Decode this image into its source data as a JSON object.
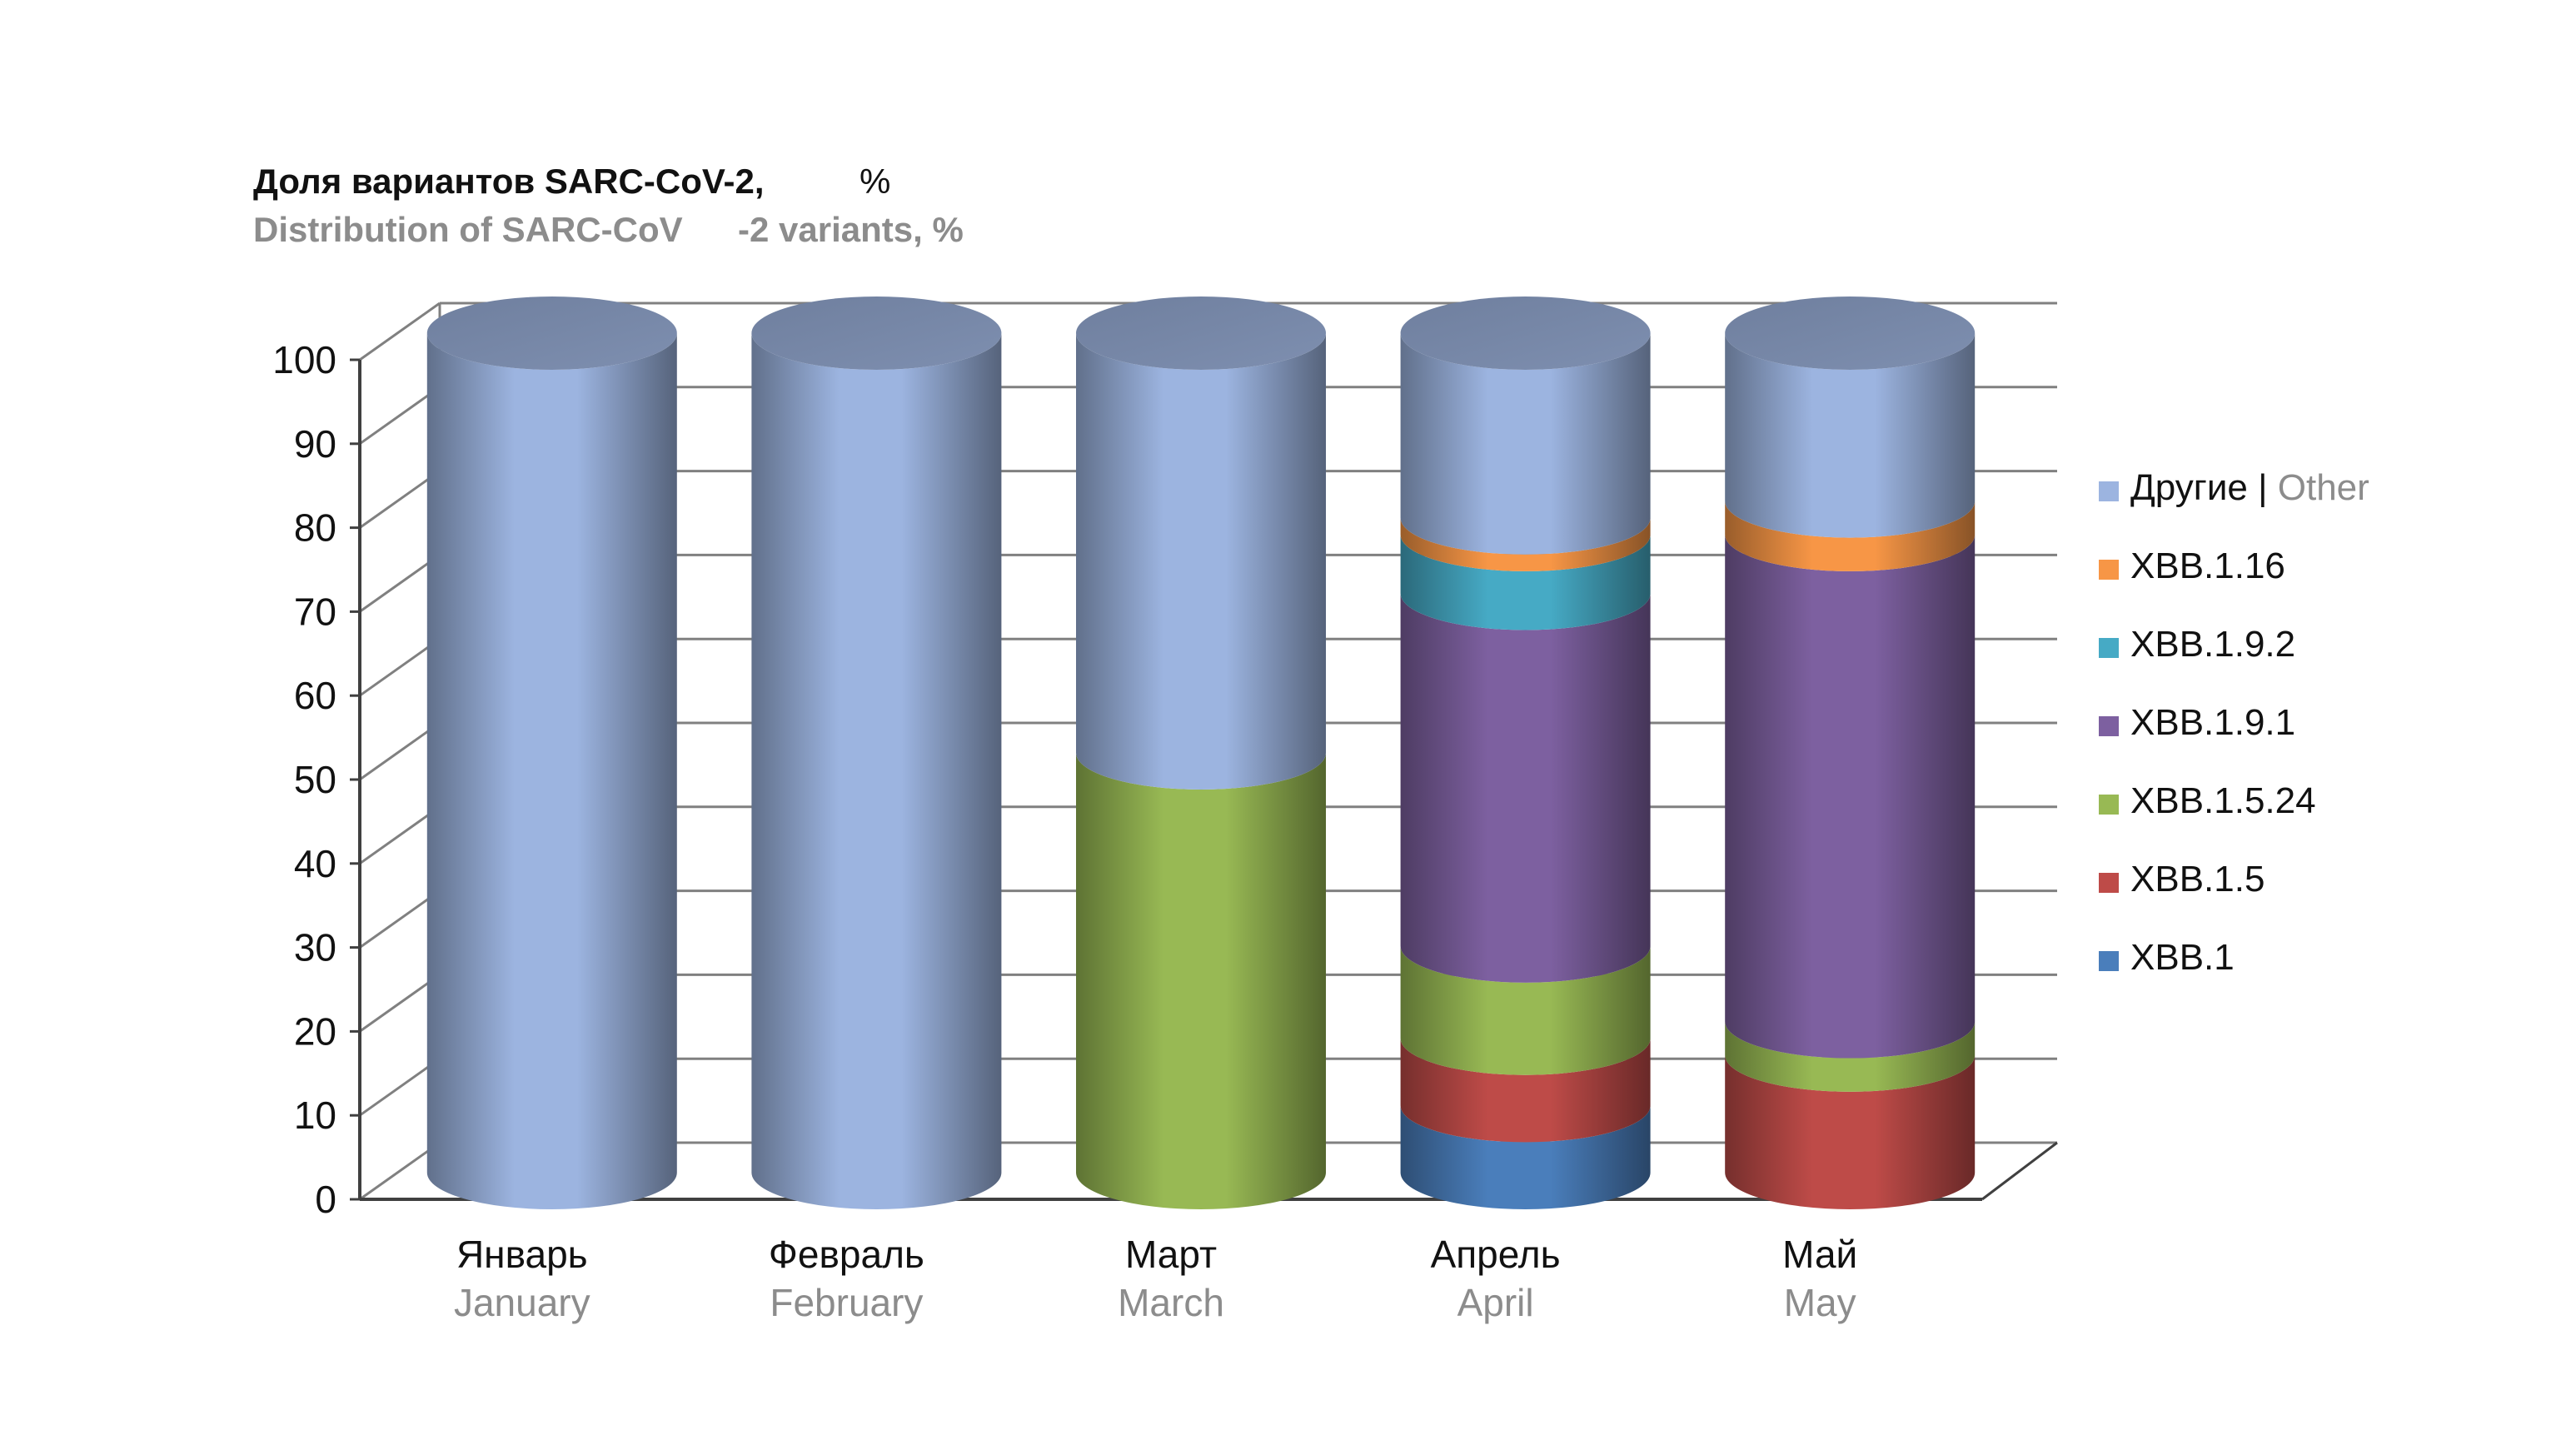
{
  "chart_data": {
    "type": "bar",
    "stacked": true,
    "style": "3d-cylinder",
    "title_ru": "Доля вариантов SARC-CoV-2,",
    "title_ru_unit": "%",
    "title_en": "Distribution of SARC-CoV",
    "title_en_suffix": "-2 variants, %",
    "categories": [
      {
        "ru": "Январь",
        "en": "January"
      },
      {
        "ru": "Февраль",
        "en": "February"
      },
      {
        "ru": "Март",
        "en": "March"
      },
      {
        "ru": "Апрель",
        "en": "April"
      },
      {
        "ru": "Май",
        "en": "May"
      }
    ],
    "yticks": [
      "0",
      "10",
      "20",
      "30",
      "40",
      "50",
      "60",
      "70",
      "80",
      "90",
      "100"
    ],
    "ylim": [
      0,
      100
    ],
    "grid": true,
    "legend_position": "right",
    "series": [
      {
        "name": "XBB.1",
        "color": "#4a7ebb",
        "values": [
          0,
          0,
          0,
          8,
          0
        ]
      },
      {
        "name": "XBB.1.5",
        "color": "#be4b48",
        "values": [
          0,
          0,
          0,
          8,
          14
        ]
      },
      {
        "name": "XBB.1.5.24",
        "color": "#98b954",
        "values": [
          0,
          0,
          50,
          11,
          4
        ]
      },
      {
        "name": "XBB.1.9.1",
        "color": "#7d60a0",
        "values": [
          0,
          0,
          0,
          42,
          58
        ]
      },
      {
        "name": "XBB.1.9.2",
        "color": "#46aac5",
        "values": [
          0,
          0,
          0,
          7,
          0
        ]
      },
      {
        "name": "XBB.1.16",
        "color": "#f79646",
        "values": [
          0,
          0,
          0,
          2,
          4
        ]
      },
      {
        "name": "Другие",
        "name_en": "Other",
        "color": "#9cb4e0",
        "values": [
          100,
          100,
          50,
          22,
          20
        ]
      }
    ],
    "legend_order": [
      "Другие",
      "XBB.1.16",
      "XBB.1.9.2",
      "XBB.1.9.1",
      "XBB.1.5.24",
      "XBB.1.5",
      "XBB.1"
    ],
    "legend_separator": "|"
  }
}
